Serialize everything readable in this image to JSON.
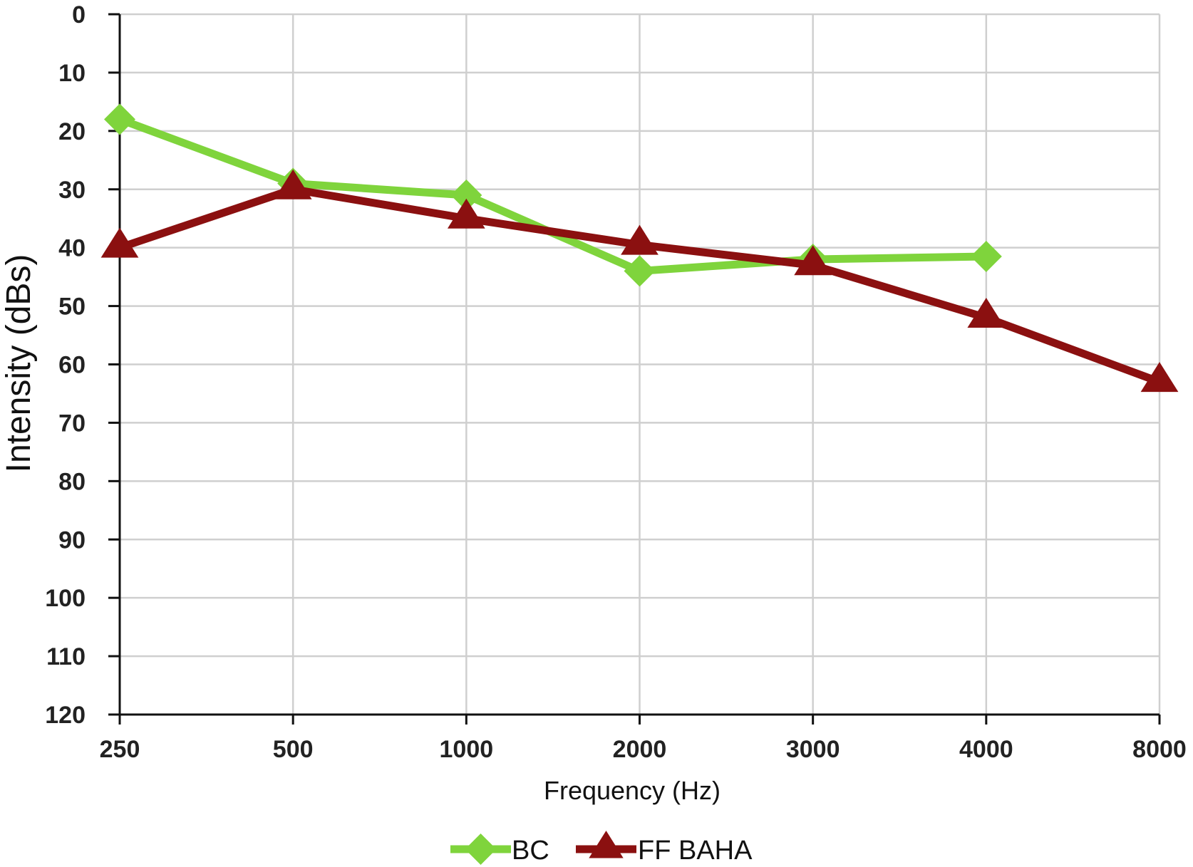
{
  "chart_data": {
    "type": "line",
    "title": "",
    "xlabel": "Frequency (Hz)",
    "ylabel": "Intensity (dBs)",
    "categories": [
      "250",
      "500",
      "1000",
      "2000",
      "3000",
      "4000",
      "8000"
    ],
    "y_ticks": [
      "0",
      "10",
      "20",
      "30",
      "40",
      "50",
      "60",
      "70",
      "80",
      "90",
      "100",
      "110",
      "120"
    ],
    "ylim": [
      0,
      120
    ],
    "y_inverted": true,
    "grid": true,
    "legend_position": "bottom",
    "series": [
      {
        "name": "BC",
        "values": [
          18,
          29,
          31,
          44,
          42,
          41.5,
          null
        ],
        "color": "#7fd43c",
        "marker": "diamond"
      },
      {
        "name": "FF BAHA",
        "values": [
          40,
          30,
          35,
          39.5,
          43,
          52,
          63
        ],
        "color": "#8b1010",
        "marker": "triangle"
      }
    ]
  }
}
